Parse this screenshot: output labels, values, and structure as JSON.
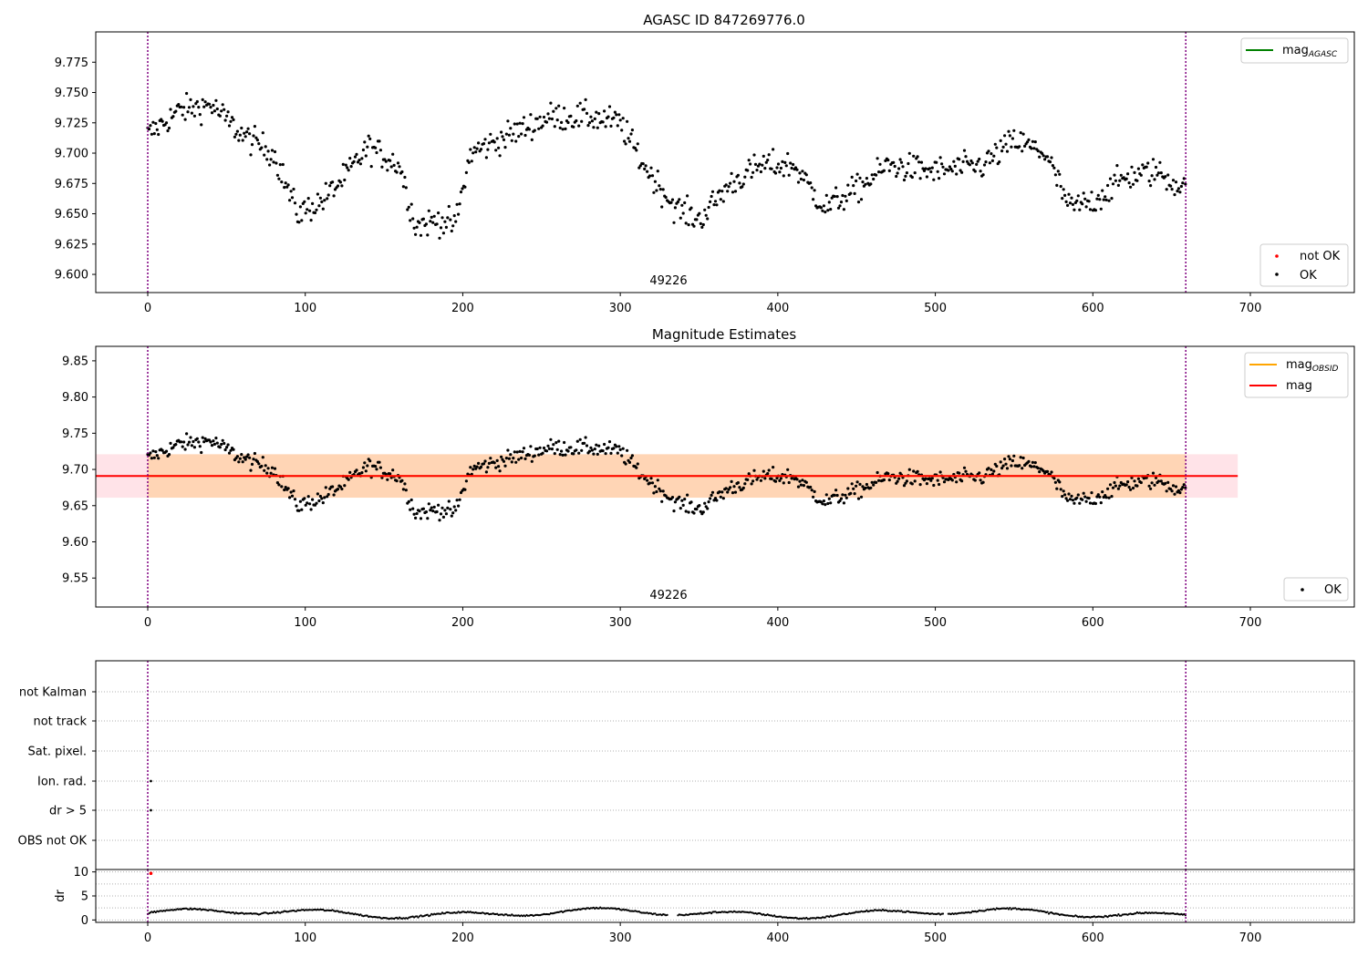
{
  "chart_data": [
    {
      "type": "scatter",
      "title": "AGASC ID 847269776.0",
      "xlim": [
        -33,
        766
      ],
      "ylim": [
        9.585,
        9.8
      ],
      "xticks": [
        0,
        100,
        200,
        300,
        400,
        500,
        600,
        700
      ],
      "yticks": [
        9.6,
        9.625,
        9.65,
        9.675,
        9.7,
        9.725,
        9.75,
        9.775
      ],
      "ytick_labels": [
        "9.600",
        "9.625",
        "9.650",
        "9.675",
        "9.700",
        "9.725",
        "9.750",
        "9.775"
      ],
      "vlines": [
        0,
        659
      ],
      "annotation": {
        "text": "49226",
        "x": 330,
        "y": 9.591
      },
      "legend_lines": [
        {
          "label": "mag",
          "sub": "AGASC",
          "color": "#008000"
        }
      ],
      "legend_points": [
        {
          "label": "not OK",
          "color": "#ff0000"
        },
        {
          "label": "OK",
          "color": "#000000"
        }
      ],
      "series_note": "OK points follow the magnitude light curve around 9.69",
      "grid": false
    },
    {
      "type": "scatter",
      "title": "Magnitude Estimates",
      "xlim": [
        -33,
        766
      ],
      "ylim": [
        9.51,
        9.87
      ],
      "xticks": [
        0,
        100,
        200,
        300,
        400,
        500,
        600,
        700
      ],
      "yticks": [
        9.55,
        9.6,
        9.65,
        9.7,
        9.75,
        9.8,
        9.85
      ],
      "ytick_labels": [
        "9.55",
        "9.60",
        "9.65",
        "9.70",
        "9.75",
        "9.80",
        "9.85"
      ],
      "vlines": [
        0,
        659
      ],
      "mag": 9.691,
      "mag_band": [
        9.661,
        9.721
      ],
      "mag_obsid": 9.691,
      "band_x": [
        -33,
        692
      ],
      "annotation": {
        "text": "49226",
        "x": 330,
        "y": 9.528
      },
      "legend_lines": [
        {
          "label": "mag",
          "sub": "OBSID",
          "color": "#ffa500"
        },
        {
          "label": "mag",
          "sub": "",
          "color": "#ff0000"
        }
      ],
      "legend_points": [
        {
          "label": "OK",
          "color": "#000000"
        }
      ],
      "grid": false
    },
    {
      "type": "scatter",
      "title": "",
      "xlim": [
        -33,
        766
      ],
      "categories": [
        "not Kalman",
        "not track",
        "Sat. pixel.",
        "Ion. rad.",
        "dr > 5",
        "OBS not OK"
      ],
      "flag_points": [
        {
          "category": "Ion. rad.",
          "x": 2
        },
        {
          "category": "dr > 5",
          "x": 2
        }
      ],
      "vlines": [
        0,
        659
      ],
      "grid": true
    },
    {
      "type": "line",
      "title": "",
      "ylabel": "dr",
      "xlim": [
        -33,
        766
      ],
      "ylim": [
        -0.5,
        10.5
      ],
      "xticks": [
        0,
        100,
        200,
        300,
        400,
        500,
        600,
        700
      ],
      "xtick_labels": [
        "0",
        "100",
        "200",
        "300",
        "400",
        "500",
        "600",
        "700"
      ],
      "yticks": [
        0,
        5,
        10
      ],
      "ytick_labels": [
        "0",
        "5",
        "10"
      ],
      "outlier": {
        "x": 2,
        "y": 9.7,
        "color": "#ff0000"
      },
      "vlines": [
        0,
        659
      ],
      "grid": true
    }
  ]
}
